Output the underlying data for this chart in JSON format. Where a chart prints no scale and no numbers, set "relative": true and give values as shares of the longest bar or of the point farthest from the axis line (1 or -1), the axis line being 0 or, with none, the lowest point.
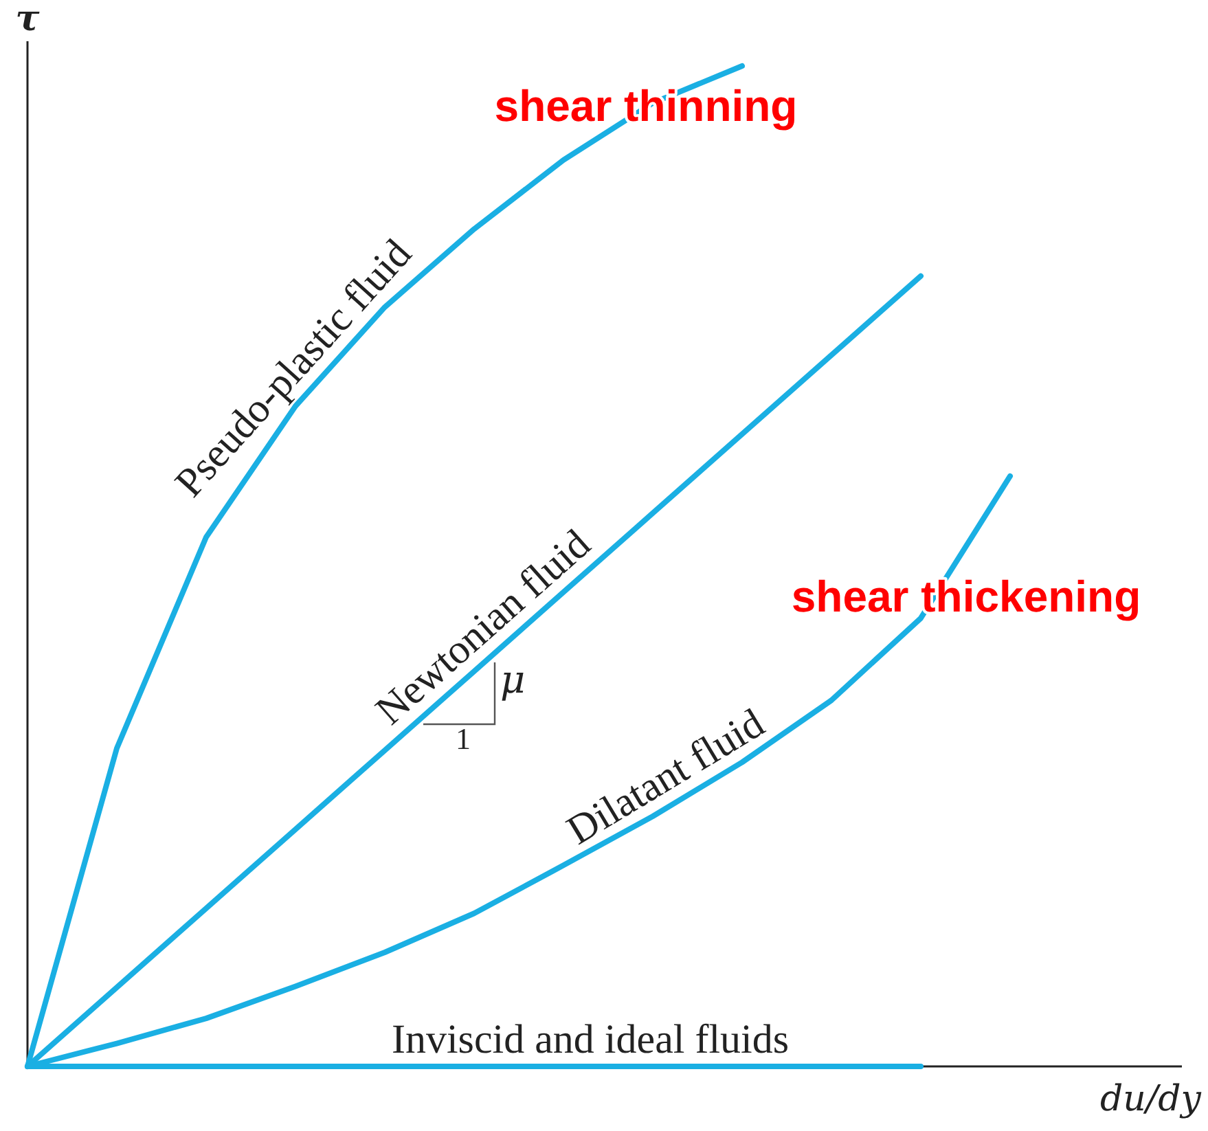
{
  "chart_data": {
    "type": "line",
    "relative": true,
    "xlabel": "du/dy",
    "ylabel": "τ",
    "marker": "none",
    "line_style": "solid",
    "categories": [
      null,
      null,
      null,
      null,
      null,
      null,
      null,
      null,
      null,
      null,
      null,
      null
    ],
    "series": [
      {
        "name": "Pseudo-plastic fluid",
        "color": "#1aafe3",
        "values": [
          0,
          0.318,
          0.529,
          0.66,
          0.759,
          0.837,
          0.906,
          0.963,
          1,
          null,
          null,
          null
        ]
      },
      {
        "name": "Newtonian fluid",
        "color": "#1aafe3",
        "values": [
          0,
          0.079,
          0.158,
          0.237,
          0.316,
          0.395,
          0.474,
          0.553,
          0.632,
          0.711,
          0.79,
          null
        ]
      },
      {
        "name": "Dilatant fluid",
        "color": "#1aafe3",
        "values": [
          0,
          0.023,
          0.048,
          0.08,
          0.114,
          0.153,
          0.201,
          0.25,
          0.304,
          0.366,
          0.448,
          0.59
        ]
      },
      {
        "name": "Inviscid and ideal fluids",
        "color": "#1aafe3",
        "values": [
          0,
          0,
          0,
          0,
          0,
          0,
          0,
          0,
          0,
          0,
          0,
          null
        ]
      }
    ],
    "annotations": [
      "shear thinning",
      "shear thickening",
      "μ",
      "1"
    ]
  }
}
